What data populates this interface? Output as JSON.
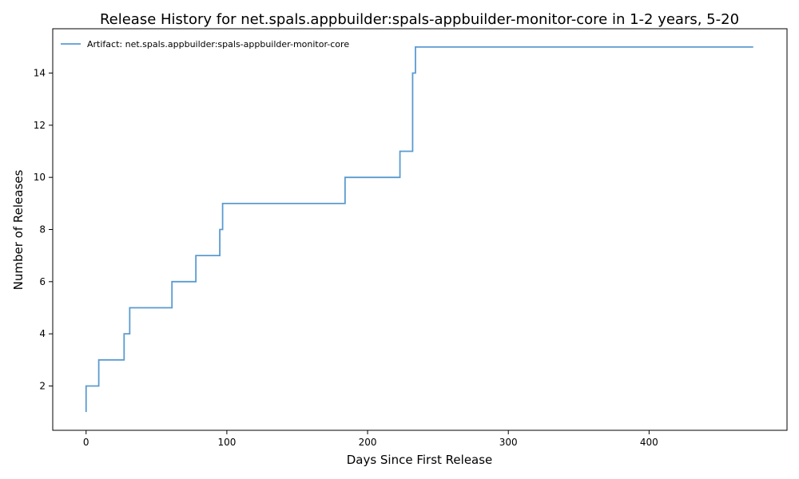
{
  "chart_data": {
    "type": "line",
    "title": "Release History for net.spals.appbuilder:spals-appbuilder-monitor-core in 1-2 years, 5-20",
    "xlabel": "Days Since First Release",
    "ylabel": "Number of Releases",
    "xlim": [
      -23.7,
      498
    ],
    "ylim": [
      0.3,
      15.7
    ],
    "xticks": [
      0,
      100,
      200,
      300,
      400
    ],
    "yticks": [
      2,
      4,
      6,
      8,
      10,
      12,
      14
    ],
    "legend_position": "top-left",
    "grid": false,
    "series": [
      {
        "name": "Artifact: net.spals.appbuilder:spals-appbuilder-monitor-core",
        "color": "#5b9bd0",
        "step": "post",
        "x": [
          0,
          0,
          9,
          27,
          29,
          31,
          61,
          78,
          95,
          96,
          97,
          184,
          223,
          232,
          232,
          233,
          234,
          474
        ],
        "y": [
          1,
          2,
          3,
          4,
          4,
          5,
          6,
          7,
          8,
          8,
          9,
          10,
          11,
          12,
          14,
          14,
          15,
          15
        ]
      }
    ]
  }
}
